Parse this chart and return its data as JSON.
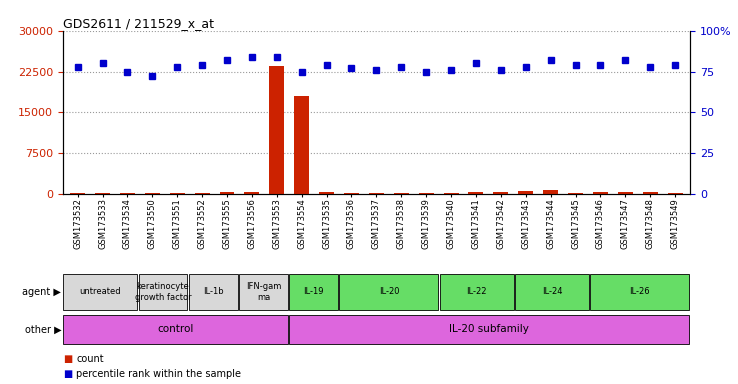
{
  "title": "GDS2611 / 211529_x_at",
  "samples": [
    "GSM173532",
    "GSM173533",
    "GSM173534",
    "GSM173550",
    "GSM173551",
    "GSM173552",
    "GSM173555",
    "GSM173556",
    "GSM173553",
    "GSM173554",
    "GSM173535",
    "GSM173536",
    "GSM173537",
    "GSM173538",
    "GSM173539",
    "GSM173540",
    "GSM173541",
    "GSM173542",
    "GSM173543",
    "GSM173544",
    "GSM173545",
    "GSM173546",
    "GSM173547",
    "GSM173548",
    "GSM173549"
  ],
  "counts": [
    200,
    230,
    180,
    210,
    200,
    190,
    400,
    300,
    23500,
    18000,
    280,
    240,
    210,
    260,
    190,
    200,
    420,
    270,
    490,
    680,
    220,
    270,
    310,
    380,
    220
  ],
  "percentile": [
    78,
    80,
    75,
    72,
    78,
    79,
    82,
    84,
    84,
    75,
    79,
    77,
    76,
    78,
    75,
    76,
    80,
    76,
    78,
    82,
    79,
    79,
    82,
    78,
    79
  ],
  "agent_groups": [
    {
      "label": "untreated",
      "start": 0,
      "end": 3,
      "color": "#d8d8d8"
    },
    {
      "label": "keratinocyte\ngrowth factor",
      "start": 3,
      "end": 5,
      "color": "#d8d8d8"
    },
    {
      "label": "IL-1b",
      "start": 5,
      "end": 7,
      "color": "#d8d8d8"
    },
    {
      "label": "IFN-gam\nma",
      "start": 7,
      "end": 9,
      "color": "#d8d8d8"
    },
    {
      "label": "IL-19",
      "start": 9,
      "end": 11,
      "color": "#66dd66"
    },
    {
      "label": "IL-20",
      "start": 11,
      "end": 15,
      "color": "#66dd66"
    },
    {
      "label": "IL-22",
      "start": 15,
      "end": 18,
      "color": "#66dd66"
    },
    {
      "label": "IL-24",
      "start": 18,
      "end": 21,
      "color": "#66dd66"
    },
    {
      "label": "IL-26",
      "start": 21,
      "end": 25,
      "color": "#66dd66"
    }
  ],
  "other_groups": [
    {
      "label": "control",
      "start": 0,
      "end": 9,
      "color": "#dd66dd"
    },
    {
      "label": "IL-20 subfamily",
      "start": 9,
      "end": 25,
      "color": "#dd66dd"
    }
  ],
  "bar_color": "#cc2200",
  "dot_color": "#0000cc",
  "ylim_left": [
    0,
    30000
  ],
  "ylim_right": [
    0,
    100
  ],
  "yticks_left": [
    0,
    7500,
    15000,
    22500,
    30000
  ],
  "yticks_right": [
    0,
    25,
    50,
    75,
    100
  ],
  "bg_color": "#ffffff",
  "grid_color": "#999999",
  "fig_bg": "#ffffff"
}
